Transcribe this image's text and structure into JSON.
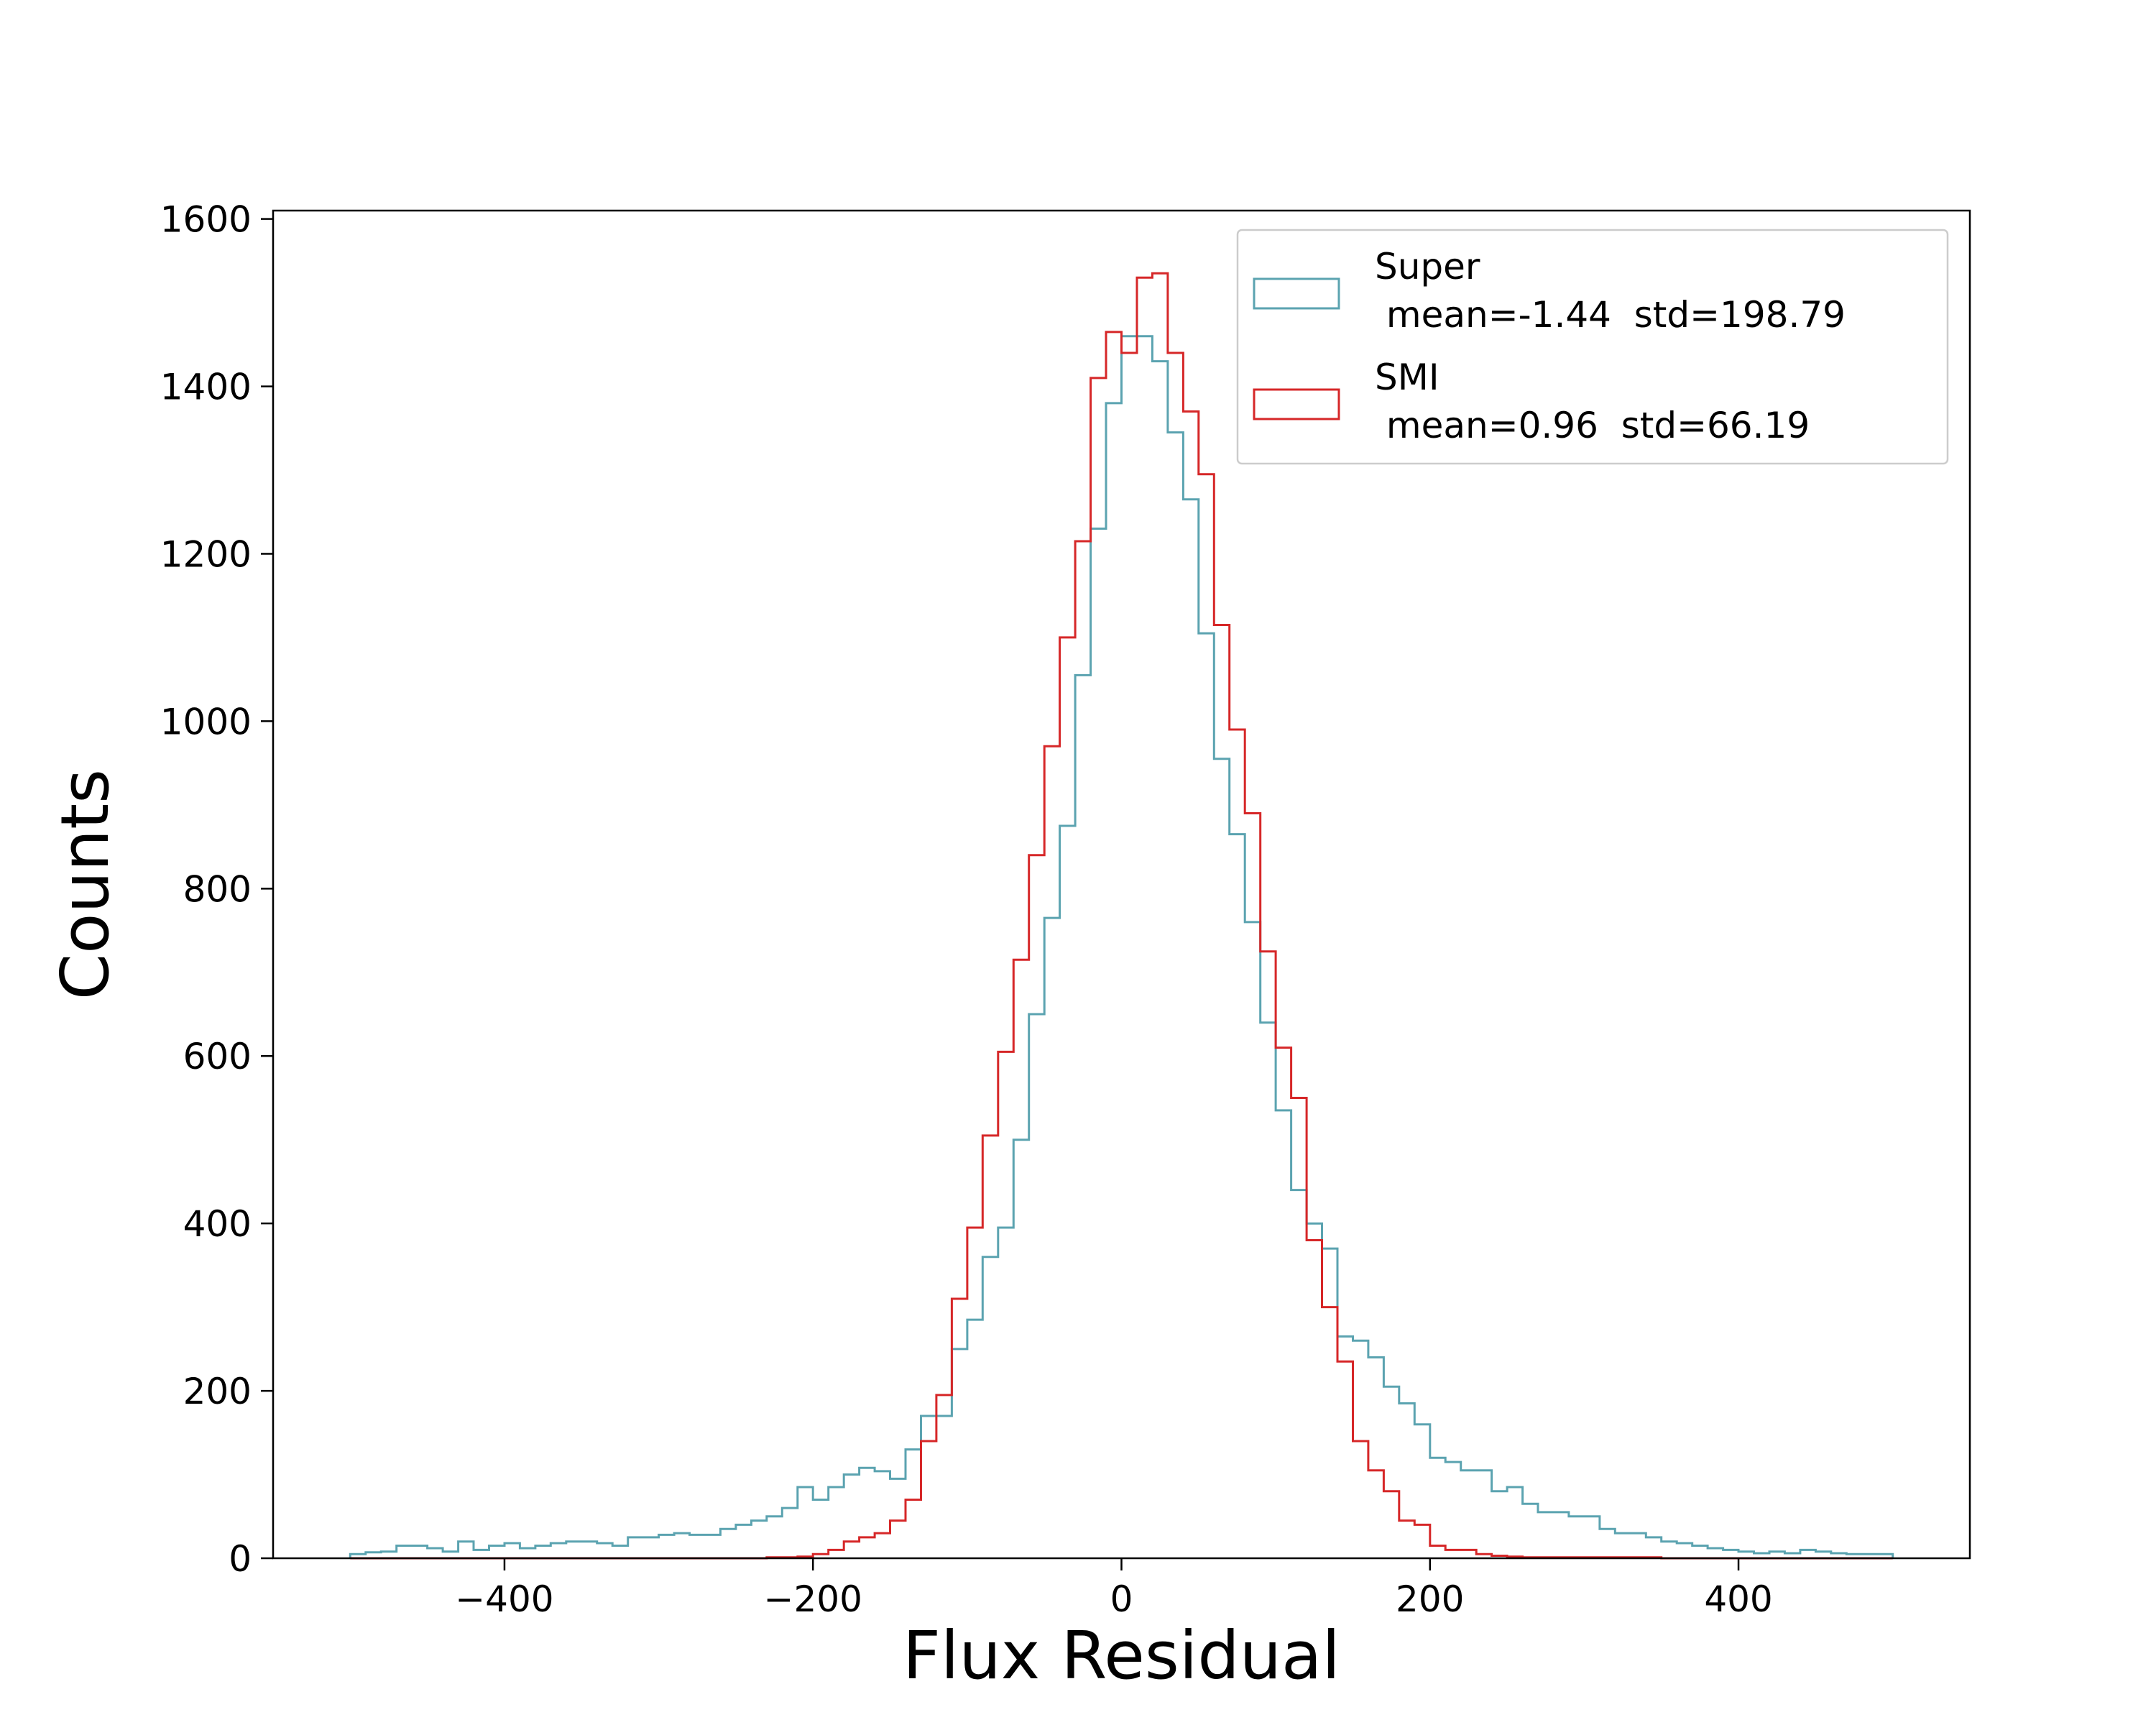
{
  "chart_data": {
    "type": "histogram",
    "xlabel": "Flux Residual",
    "ylabel": "Counts",
    "xlim": [
      -550,
      550
    ],
    "ylim": [
      0,
      1610
    ],
    "x_ticks": [
      {
        "value": -400,
        "label": "−400"
      },
      {
        "value": -200,
        "label": "−200"
      },
      {
        "value": 0,
        "label": "0"
      },
      {
        "value": 200,
        "label": "200"
      },
      {
        "value": 400,
        "label": "400"
      }
    ],
    "y_ticks": [
      {
        "value": 0,
        "label": "0"
      },
      {
        "value": 200,
        "label": "200"
      },
      {
        "value": 400,
        "label": "400"
      },
      {
        "value": 600,
        "label": "600"
      },
      {
        "value": 800,
        "label": "800"
      },
      {
        "value": 1000,
        "label": "1000"
      },
      {
        "value": 1200,
        "label": "1200"
      },
      {
        "value": 1400,
        "label": "1400"
      },
      {
        "value": 1600,
        "label": "1600"
      }
    ],
    "grid": false,
    "legend_position": "top-right",
    "bin_start": -500,
    "bin_width": 10,
    "series": [
      {
        "name": "Super",
        "stats": " mean=-1.44  std=198.79",
        "color": "#5ba3b0",
        "counts": [
          5,
          7,
          8,
          15,
          15,
          12,
          8,
          20,
          10,
          15,
          18,
          12,
          15,
          18,
          20,
          20,
          18,
          15,
          25,
          25,
          28,
          30,
          28,
          28,
          35,
          40,
          45,
          50,
          60,
          85,
          70,
          85,
          100,
          108,
          104,
          95,
          130,
          170,
          170,
          250,
          285,
          360,
          395,
          500,
          650,
          765,
          875,
          1055,
          1230,
          1380,
          1460,
          1460,
          1430,
          1345,
          1265,
          1105,
          955,
          865,
          760,
          640,
          535,
          440,
          400,
          370,
          265,
          260,
          240,
          205,
          185,
          160,
          120,
          115,
          105,
          105,
          80,
          85,
          65,
          55,
          55,
          50,
          50,
          35,
          30,
          30,
          25,
          20,
          18,
          15,
          12,
          10,
          8,
          6,
          8,
          6,
          10,
          8,
          6,
          5,
          5,
          5
        ]
      },
      {
        "name": "SMI",
        "stats": " mean=0.96  std=66.19",
        "color": "#d62728",
        "counts": [
          0,
          0,
          0,
          0,
          0,
          0,
          0,
          0,
          0,
          0,
          0,
          0,
          0,
          0,
          0,
          0,
          0,
          0,
          0,
          0,
          0,
          0,
          0,
          0,
          0,
          0,
          0,
          1,
          1,
          2,
          5,
          10,
          20,
          25,
          30,
          45,
          70,
          140,
          195,
          310,
          395,
          505,
          605,
          715,
          840,
          970,
          1100,
          1215,
          1410,
          1465,
          1440,
          1530,
          1535,
          1440,
          1370,
          1295,
          1115,
          990,
          890,
          725,
          610,
          550,
          380,
          300,
          235,
          140,
          105,
          80,
          45,
          40,
          15,
          10,
          10,
          5,
          3,
          2,
          1,
          1,
          1,
          1,
          1,
          1,
          1,
          1,
          1,
          0,
          0,
          0,
          0,
          0,
          0,
          0,
          0,
          0,
          0,
          0,
          0,
          0,
          0,
          0
        ]
      }
    ]
  }
}
